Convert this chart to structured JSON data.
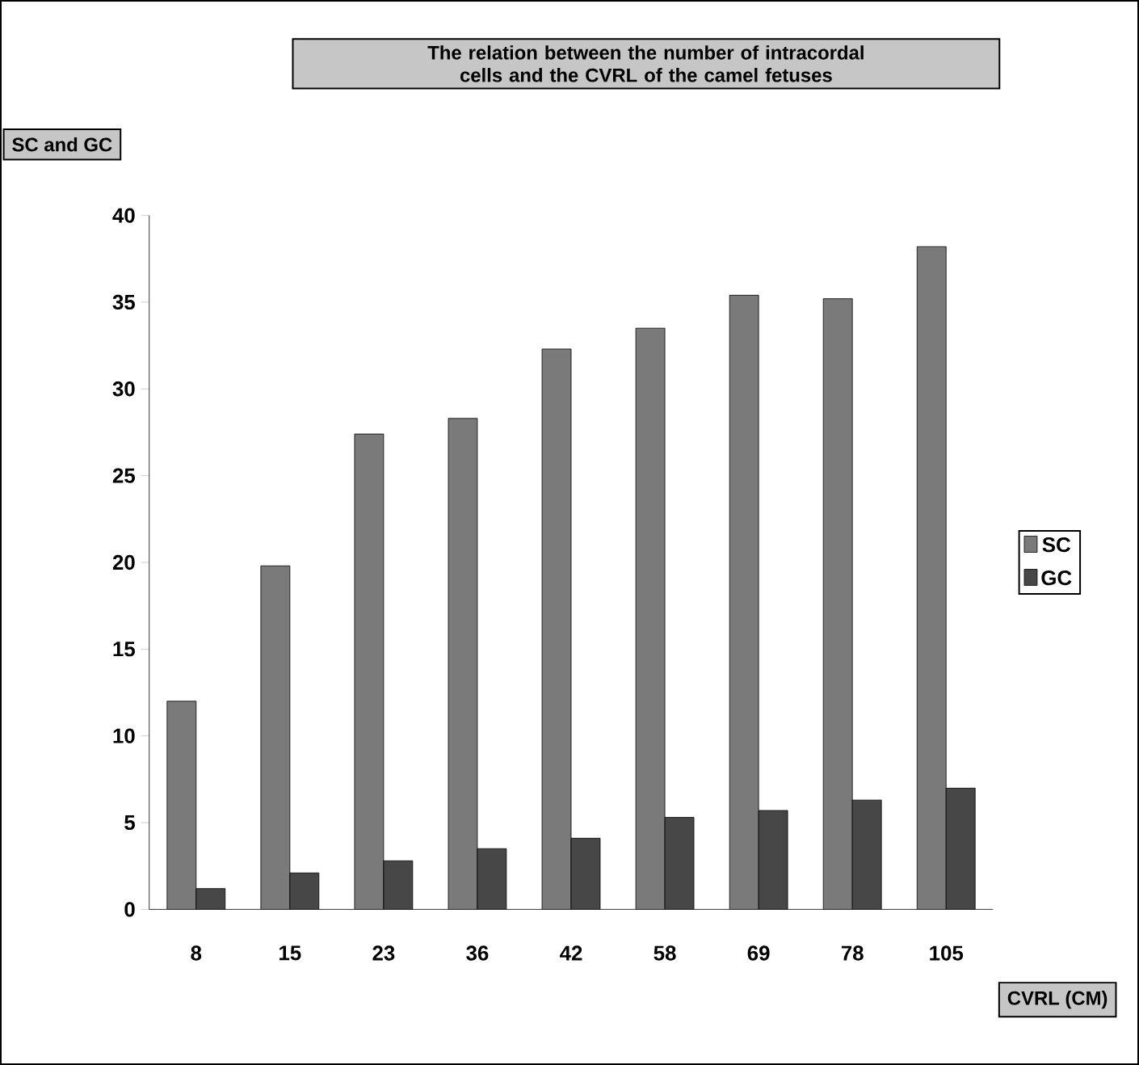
{
  "chart_data": {
    "type": "bar",
    "title": "The relation between the number of intracordal cells and the CVRL of the camel fetuses",
    "xlabel": "CVRL (CM)",
    "ylabel": "SC and GC",
    "categories": [
      "8",
      "15",
      "23",
      "36",
      "42",
      "58",
      "69",
      "78",
      "105"
    ],
    "series": [
      {
        "name": "SC",
        "color": "#7a7a7a",
        "values": [
          12.0,
          19.8,
          27.4,
          28.3,
          32.3,
          33.5,
          35.4,
          35.2,
          38.2
        ]
      },
      {
        "name": "GC",
        "color": "#474747",
        "values": [
          1.2,
          2.1,
          2.8,
          3.5,
          4.1,
          5.3,
          5.7,
          6.3,
          7.0
        ]
      }
    ],
    "ylim": [
      0,
      40
    ],
    "yticks": [
      0,
      5,
      10,
      15,
      20,
      25,
      30,
      35,
      40
    ],
    "grid": false,
    "legend": "right"
  }
}
